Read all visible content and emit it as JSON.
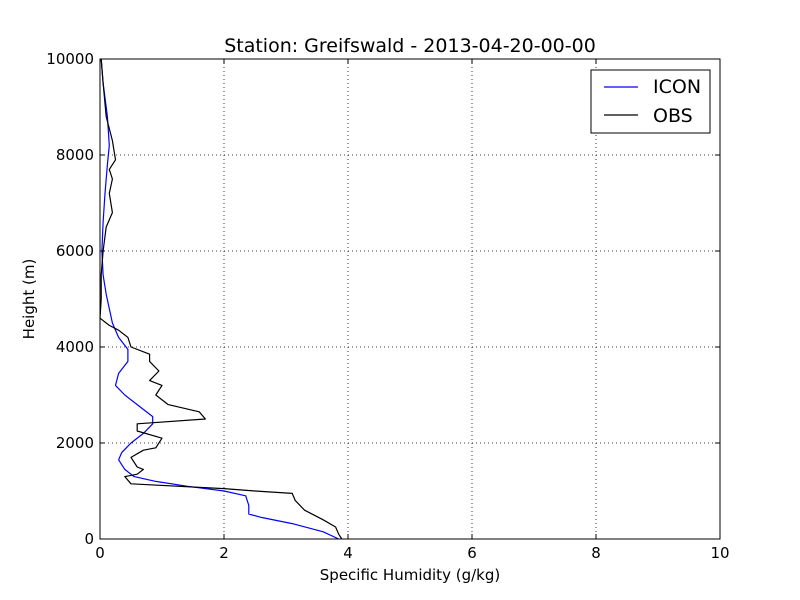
{
  "chart_data": {
    "type": "line",
    "title": "Station: Greifswald - 2013-04-20-00-00",
    "xlabel": "Specific Humidity (g/kg)",
    "ylabel": "Height (m)",
    "xlim": [
      0,
      10
    ],
    "ylim": [
      0,
      10000
    ],
    "xticks": [
      0,
      2,
      4,
      6,
      8,
      10
    ],
    "yticks": [
      0,
      2000,
      4000,
      6000,
      8000,
      10000
    ],
    "grid": true,
    "legend_position": "top-right",
    "series": [
      {
        "name": "ICON",
        "color": "#0000ff",
        "points": [
          [
            3.85,
            0
          ],
          [
            3.6,
            150
          ],
          [
            3.1,
            320
          ],
          [
            2.6,
            450
          ],
          [
            2.4,
            520
          ],
          [
            2.4,
            700
          ],
          [
            2.35,
            900
          ],
          [
            2.0,
            1000
          ],
          [
            1.4,
            1100
          ],
          [
            0.9,
            1200
          ],
          [
            0.55,
            1300
          ],
          [
            0.4,
            1450
          ],
          [
            0.3,
            1650
          ],
          [
            0.35,
            1800
          ],
          [
            0.5,
            2000
          ],
          [
            0.7,
            2200
          ],
          [
            0.85,
            2400
          ],
          [
            0.85,
            2550
          ],
          [
            0.6,
            2800
          ],
          [
            0.4,
            3000
          ],
          [
            0.25,
            3200
          ],
          [
            0.3,
            3450
          ],
          [
            0.45,
            3700
          ],
          [
            0.45,
            3950
          ],
          [
            0.3,
            4200
          ],
          [
            0.2,
            4500
          ],
          [
            0.15,
            4800
          ],
          [
            0.1,
            5100
          ],
          [
            0.05,
            5500
          ],
          [
            0.03,
            6000
          ],
          [
            0.05,
            6600
          ],
          [
            0.08,
            7200
          ],
          [
            0.12,
            7800
          ],
          [
            0.15,
            8200
          ],
          [
            0.12,
            8800
          ],
          [
            0.05,
            9500
          ],
          [
            0.02,
            10000
          ]
        ]
      },
      {
        "name": "OBS",
        "color": "#000000",
        "points": [
          [
            3.9,
            0
          ],
          [
            3.85,
            100
          ],
          [
            3.8,
            250
          ],
          [
            3.6,
            400
          ],
          [
            3.3,
            600
          ],
          [
            3.15,
            800
          ],
          [
            3.1,
            950
          ],
          [
            2.5,
            1000
          ],
          [
            2.0,
            1050
          ],
          [
            0.5,
            1150
          ],
          [
            0.4,
            1300
          ],
          [
            0.6,
            1350
          ],
          [
            0.7,
            1450
          ],
          [
            0.6,
            1500
          ],
          [
            0.5,
            1700
          ],
          [
            0.7,
            1850
          ],
          [
            0.9,
            1900
          ],
          [
            1.0,
            2100
          ],
          [
            0.6,
            2250
          ],
          [
            0.6,
            2400
          ],
          [
            1.7,
            2500
          ],
          [
            1.6,
            2650
          ],
          [
            1.1,
            2800
          ],
          [
            0.9,
            3000
          ],
          [
            1.0,
            3200
          ],
          [
            0.8,
            3300
          ],
          [
            0.95,
            3500
          ],
          [
            0.8,
            3700
          ],
          [
            0.8,
            3850
          ],
          [
            0.5,
            4000
          ],
          [
            0.45,
            4200
          ],
          [
            0.3,
            4350
          ],
          [
            0.15,
            4450
          ],
          [
            0.0,
            4600
          ],
          [
            0.02,
            5000
          ],
          [
            0.02,
            5500
          ],
          [
            0.05,
            6000
          ],
          [
            0.1,
            6500
          ],
          [
            0.2,
            6800
          ],
          [
            0.15,
            7200
          ],
          [
            0.2,
            7500
          ],
          [
            0.15,
            7700
          ],
          [
            0.25,
            7900
          ],
          [
            0.2,
            8300
          ],
          [
            0.1,
            8800
          ],
          [
            0.05,
            9500
          ],
          [
            0.02,
            10000
          ]
        ]
      }
    ]
  }
}
